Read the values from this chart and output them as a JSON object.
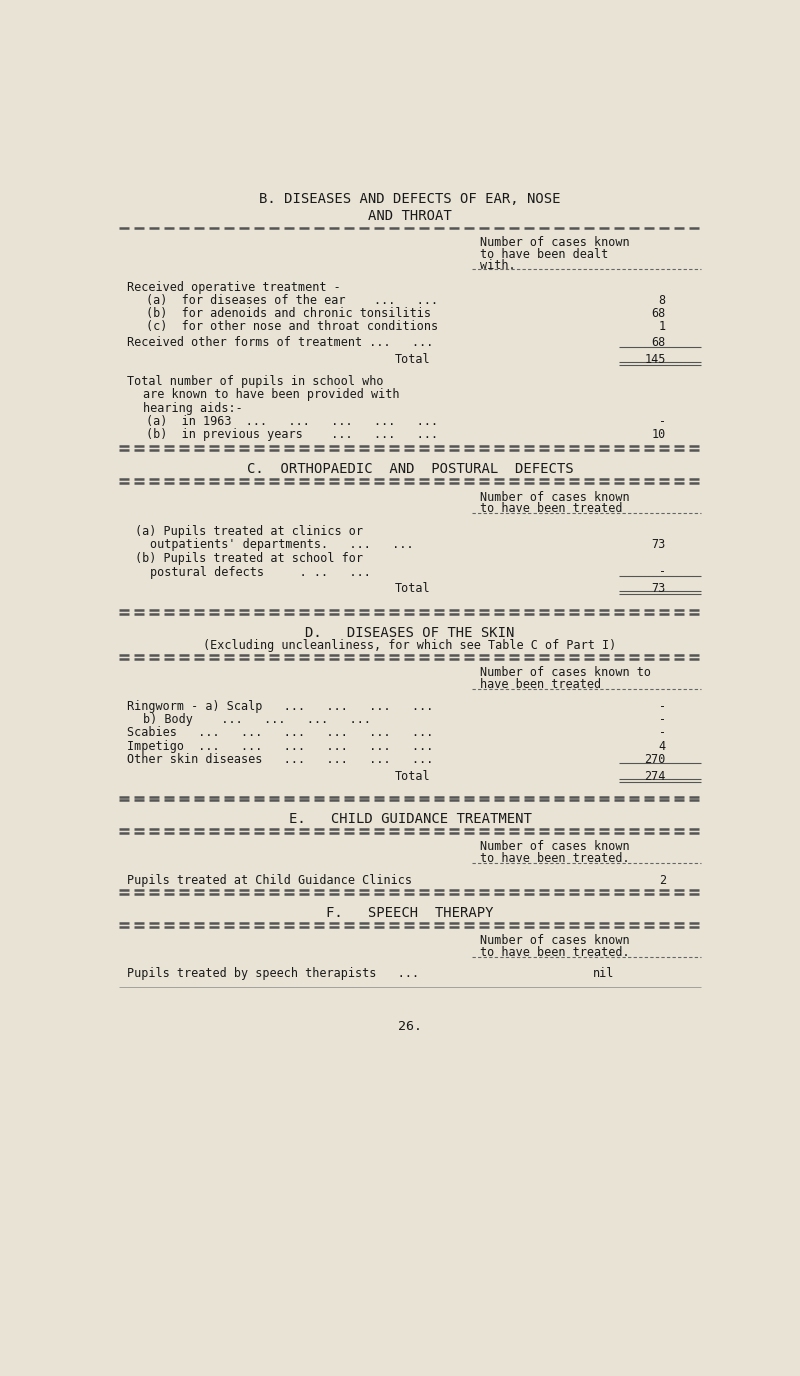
{
  "bg_color": "#e8e3d5",
  "text_color": "#1a1a1a",
  "title_b1": "B. DISEASES AND DEFECTS OF EAR, NOSE",
  "title_b2": "AND THROAT",
  "title_c": "C.  ORTHOPAEDIC  AND  POSTURAL  DEFECTS",
  "title_d1": "D.   DISEASES OF THE SKIN",
  "title_d2": "(Excluding uncleanliness, for which see Table C of Part I)",
  "title_e": "E.   CHILD GUIDANCE TREATMENT",
  "title_f": "F.   SPEECH  THERAPY",
  "page_number": "26."
}
